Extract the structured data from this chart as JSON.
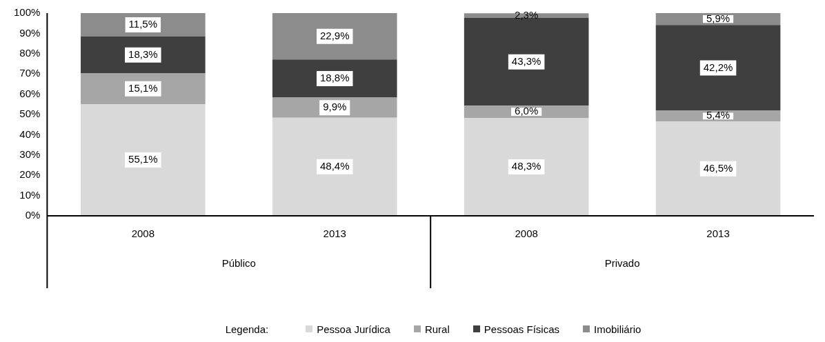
{
  "chart_data": {
    "type": "bar",
    "stacked": true,
    "categories": [
      "2008",
      "2013",
      "2008",
      "2013"
    ],
    "series": [
      {
        "name": "Pessoa Jurídica",
        "color": "#d9d9d9",
        "values": [
          55.1,
          48.4,
          48.3,
          46.5
        ],
        "value_labels": [
          "55,1%",
          "48,4%",
          "48,3%",
          "46,5%"
        ]
      },
      {
        "name": "Rural",
        "color": "#a6a6a6",
        "values": [
          15.1,
          9.9,
          6.0,
          5.4
        ],
        "value_labels": [
          "15,1%",
          "9,9%",
          "6,0%",
          "5,4%"
        ]
      },
      {
        "name": "Pessoas Físicas",
        "color": "#3f3f3f",
        "values": [
          18.3,
          18.8,
          43.3,
          42.2
        ],
        "value_labels": [
          "18,3%",
          "18,8%",
          "43,3%",
          "42,2%"
        ]
      },
      {
        "name": "Imobiliário",
        "color": "#8c8c8c",
        "values": [
          11.5,
          22.9,
          2.3,
          5.9
        ],
        "value_labels": [
          "11,5%",
          "22,9%",
          "2,3%",
          "5,9%"
        ]
      }
    ],
    "ylim": [
      0,
      100
    ],
    "yticks": [
      {
        "value": 0,
        "label": "0%"
      },
      {
        "value": 10,
        "label": "10%"
      },
      {
        "value": 20,
        "label": "20%"
      },
      {
        "value": 30,
        "label": "30%"
      },
      {
        "value": 40,
        "label": "40%"
      },
      {
        "value": 50,
        "label": "50%"
      },
      {
        "value": 60,
        "label": "60%"
      },
      {
        "value": 70,
        "label": "70%"
      },
      {
        "value": 80,
        "label": "80%"
      },
      {
        "value": 90,
        "label": "90%"
      },
      {
        "value": 100,
        "label": "100%"
      }
    ],
    "grid": false,
    "legend": "bottom",
    "legend_title": "Legenda:",
    "annotations": [
      "Público",
      "Privado"
    ]
  }
}
